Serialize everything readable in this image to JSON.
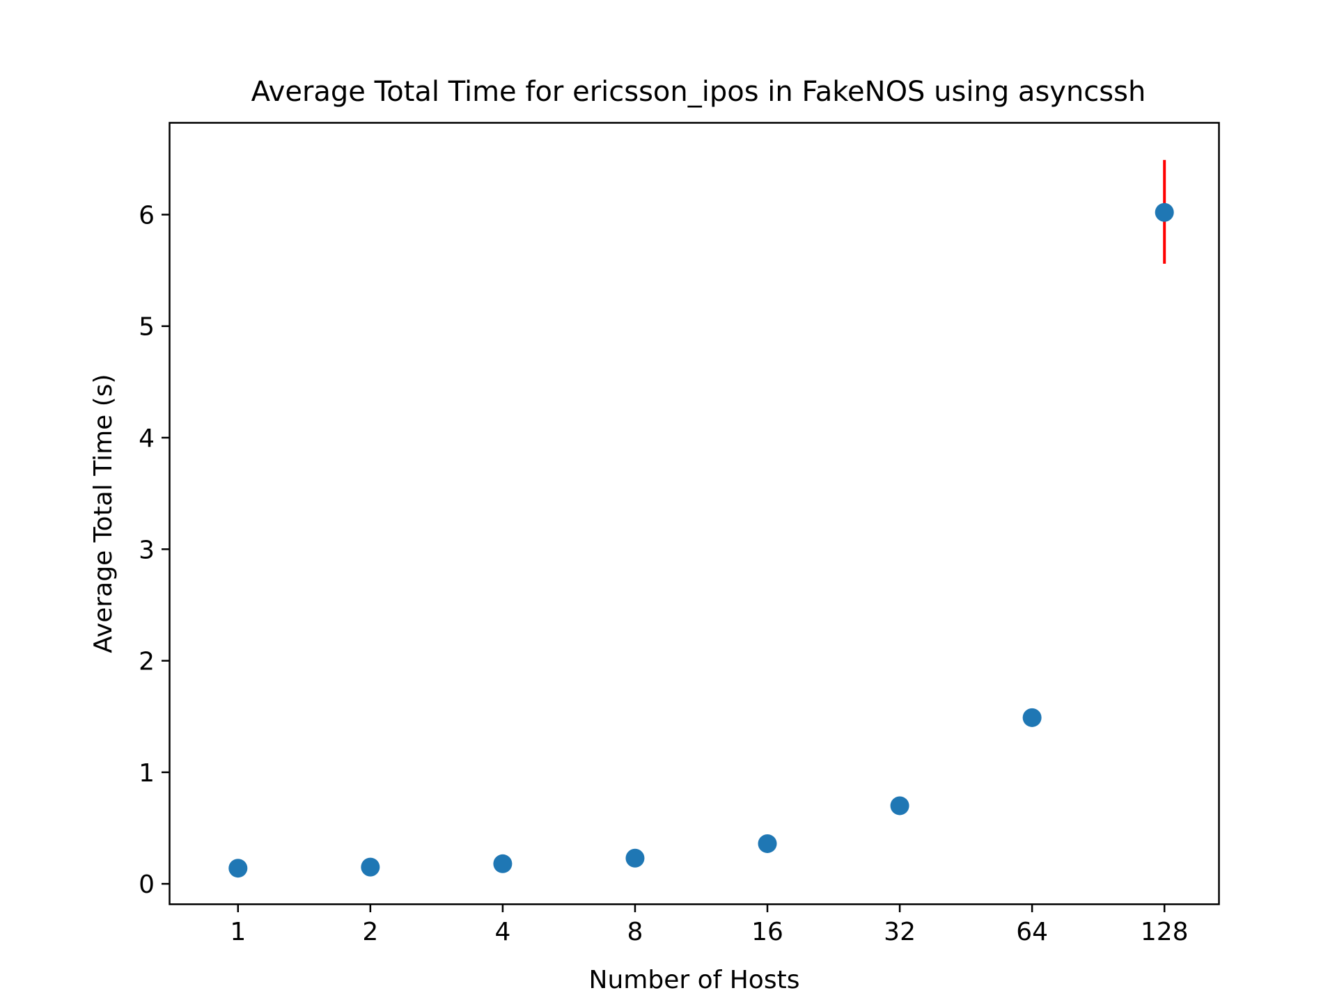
{
  "chart_data": {
    "type": "scatter",
    "title": "Average Total Time for ericsson_ipos in FakeNOS using asyncssh",
    "xlabel": "Number of Hosts",
    "ylabel": "Average Total Time (s)",
    "x_scale": "log2",
    "x_ticks": [
      "1",
      "2",
      "4",
      "8",
      "16",
      "32",
      "64",
      "128"
    ],
    "y_ticks": [
      "0",
      "1",
      "2",
      "3",
      "4",
      "5",
      "6"
    ],
    "xlim": [
      0.7,
      170
    ],
    "ylim": [
      -0.18,
      6.82
    ],
    "grid": false,
    "legend": "none",
    "series": [
      {
        "x": [
          1,
          2,
          4,
          8,
          16,
          32,
          64,
          128
        ],
        "y": [
          0.14,
          0.15,
          0.18,
          0.23,
          0.36,
          0.7,
          1.49,
          6.02
        ],
        "yerr_low": [
          0.14,
          0.15,
          0.18,
          0.23,
          0.36,
          0.7,
          1.49,
          5.56
        ],
        "yerr_high": [
          0.14,
          0.15,
          0.18,
          0.23,
          0.36,
          0.7,
          1.49,
          6.49
        ],
        "color": "#1f77b4",
        "error_color": "#ff0000"
      }
    ]
  }
}
